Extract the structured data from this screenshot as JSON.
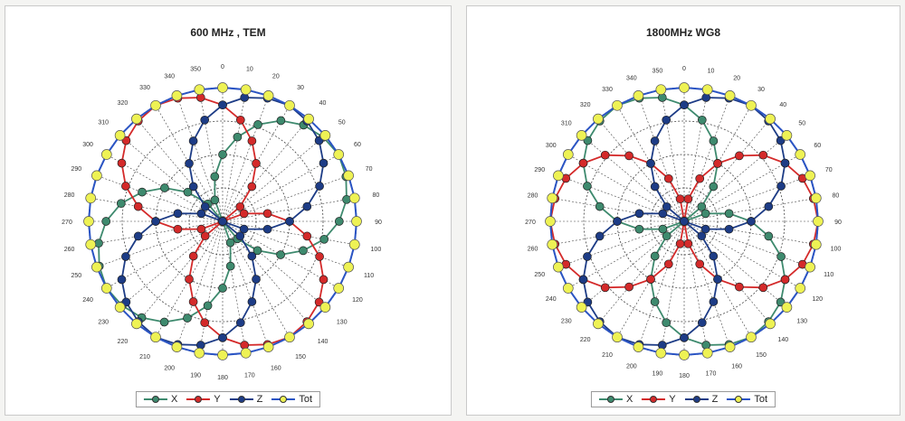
{
  "colors": {
    "X": "#3e8a6e",
    "Y": "#d42a2a",
    "Z": "#1d3c86",
    "Tot": "#2a54c4",
    "Tot_marker": "#eef254",
    "grid": "#444444"
  },
  "legend": [
    {
      "key": "X",
      "label": "X"
    },
    {
      "key": "Y",
      "label": "Y"
    },
    {
      "key": "Z",
      "label": "Z"
    },
    {
      "key": "Tot",
      "label": "Tot"
    }
  ],
  "chart_data": [
    {
      "type": "polar-line",
      "title": "600 MHz , TEM",
      "theta_ticks": [
        "0",
        "10",
        "20",
        "30",
        "40",
        "50",
        "60",
        "70",
        "80",
        "90",
        "100",
        "110",
        "120",
        "130",
        "140",
        "150",
        "160",
        "170",
        "180",
        "190",
        "200",
        "210",
        "220",
        "230",
        "240",
        "250",
        "260",
        "270",
        "280",
        "290",
        "300",
        "310",
        "320",
        "330",
        "340",
        "350"
      ],
      "angle_step_deg": 10,
      "r_max": 1.0,
      "series": [
        {
          "name": "X",
          "pattern": "abs(sin(theta + 30deg))",
          "r": [
            0.5,
            0.64,
            0.77,
            0.87,
            0.94,
            0.98,
            1.0,
            0.98,
            0.94,
            0.87,
            0.77,
            0.64,
            0.5,
            0.34,
            0.17,
            0.0,
            0.17,
            0.34,
            0.5,
            0.64,
            0.77,
            0.87,
            0.94,
            0.98,
            1.0,
            0.98,
            0.94,
            0.87,
            0.77,
            0.64,
            0.5,
            0.34,
            0.17,
            0.0,
            0.17,
            0.34
          ]
        },
        {
          "name": "Y",
          "pattern": "abs(cos(theta + 30deg))",
          "r": [
            0.87,
            0.77,
            0.64,
            0.5,
            0.34,
            0.17,
            0.0,
            0.17,
            0.34,
            0.5,
            0.64,
            0.77,
            0.87,
            0.94,
            0.98,
            1.0,
            0.98,
            0.94,
            0.87,
            0.77,
            0.64,
            0.5,
            0.34,
            0.17,
            0.0,
            0.17,
            0.34,
            0.5,
            0.64,
            0.77,
            0.87,
            0.94,
            0.98,
            1.0,
            0.98,
            0.94
          ]
        },
        {
          "name": "Z",
          "pattern": "abs(cos(theta - 30deg))",
          "r": [
            0.87,
            0.94,
            0.98,
            1.0,
            0.98,
            0.94,
            0.87,
            0.77,
            0.64,
            0.5,
            0.34,
            0.17,
            0.0,
            0.17,
            0.34,
            0.5,
            0.64,
            0.77,
            0.87,
            0.94,
            0.98,
            1.0,
            0.98,
            0.94,
            0.87,
            0.77,
            0.64,
            0.5,
            0.34,
            0.17,
            0.0,
            0.17,
            0.34,
            0.5,
            0.64,
            0.77
          ]
        },
        {
          "name": "Tot",
          "pattern": "constant",
          "r": [
            1.0,
            1.0,
            1.0,
            1.0,
            1.0,
            1.0,
            1.0,
            1.0,
            1.0,
            1.0,
            1.0,
            1.0,
            1.0,
            1.0,
            1.0,
            1.0,
            1.0,
            1.0,
            1.0,
            1.0,
            1.0,
            1.0,
            1.0,
            1.0,
            1.0,
            1.0,
            1.0,
            1.0,
            1.0,
            1.0,
            1.0,
            1.0,
            1.0,
            1.0,
            1.0,
            1.0
          ]
        }
      ]
    },
    {
      "type": "polar-line",
      "title": "1800MHz WG8",
      "theta_ticks": [
        "0",
        "10",
        "20",
        "30",
        "40",
        "50",
        "60",
        "70",
        "80",
        "90",
        "100",
        "110",
        "120",
        "130",
        "140",
        "150",
        "160",
        "170",
        "180",
        "190",
        "200",
        "210",
        "220",
        "230",
        "240",
        "250",
        "260",
        "270",
        "280",
        "290",
        "300",
        "310",
        "320",
        "330",
        "340",
        "350"
      ],
      "angle_step_deg": 10,
      "r_max": 1.0,
      "series": [
        {
          "name": "X",
          "pattern": "abs(cos(theta + 30deg))",
          "r": [
            0.87,
            0.77,
            0.64,
            0.5,
            0.34,
            0.17,
            0.0,
            0.17,
            0.34,
            0.5,
            0.64,
            0.77,
            0.87,
            0.94,
            0.98,
            1.0,
            0.98,
            0.94,
            0.87,
            0.77,
            0.64,
            0.5,
            0.34,
            0.17,
            0.0,
            0.17,
            0.34,
            0.5,
            0.64,
            0.77,
            0.87,
            0.94,
            0.98,
            1.0,
            0.98,
            0.94
          ]
        },
        {
          "name": "Y",
          "pattern": "abs(sin(theta))",
          "r": [
            0.0,
            0.17,
            0.34,
            0.5,
            0.64,
            0.77,
            0.87,
            0.94,
            0.98,
            1.0,
            0.98,
            0.94,
            0.87,
            0.77,
            0.64,
            0.5,
            0.34,
            0.17,
            0.0,
            0.17,
            0.34,
            0.5,
            0.64,
            0.77,
            0.87,
            0.94,
            0.98,
            1.0,
            0.98,
            0.94,
            0.87,
            0.77,
            0.64,
            0.5,
            0.34,
            0.17
          ]
        },
        {
          "name": "Z",
          "pattern": "abs(cos(theta - 30deg))",
          "r": [
            0.87,
            0.94,
            0.98,
            1.0,
            0.98,
            0.94,
            0.87,
            0.77,
            0.64,
            0.5,
            0.34,
            0.17,
            0.0,
            0.17,
            0.34,
            0.5,
            0.64,
            0.77,
            0.87,
            0.94,
            0.98,
            1.0,
            0.98,
            0.94,
            0.87,
            0.77,
            0.64,
            0.5,
            0.34,
            0.17,
            0.0,
            0.17,
            0.34,
            0.5,
            0.64,
            0.77
          ]
        },
        {
          "name": "Tot",
          "pattern": "constant",
          "r": [
            1.0,
            1.0,
            1.0,
            1.0,
            1.0,
            1.0,
            1.0,
            1.0,
            1.0,
            1.0,
            1.0,
            1.0,
            1.0,
            1.0,
            1.0,
            1.0,
            1.0,
            1.0,
            1.0,
            1.0,
            1.0,
            1.0,
            1.0,
            1.0,
            1.0,
            1.0,
            1.0,
            1.0,
            1.0,
            1.0,
            1.0,
            1.0,
            1.0,
            1.0,
            1.0,
            1.0
          ]
        }
      ]
    }
  ]
}
